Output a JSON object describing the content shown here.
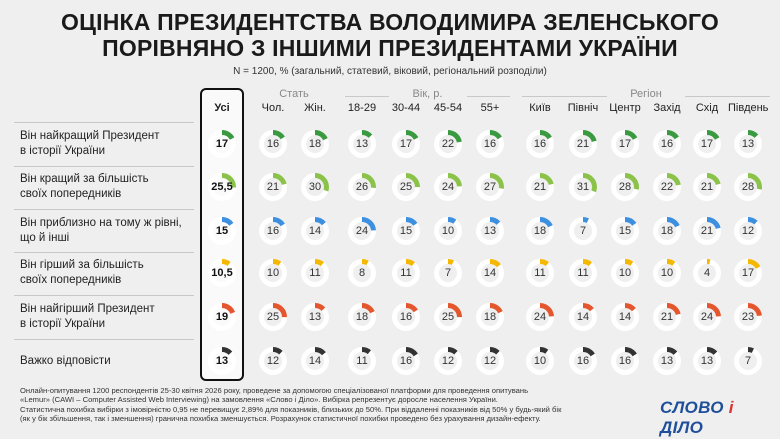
{
  "title_lines": [
    "ОЦІНКА ПРЕЗИДЕНТСТВА ВОЛОДИМИРА ЗЕЛЕНСЬКОГО",
    "ПОРІВНЯНО З ІНШИМИ ПРЕЗИДЕНТАМИ УКРАЇНИ"
  ],
  "subtitle": "N = 1200, % (загальний, статевий, віковий, регіональний розподіли)",
  "groups": [
    "Стать",
    "Вік, р.",
    "Регіон"
  ],
  "columns": [
    "Усі",
    "Чол.",
    "Жін.",
    "18-29",
    "30-44",
    "45-54",
    "55+",
    "Київ",
    "Північ",
    "Центр",
    "Захід",
    "Схід",
    "Південь"
  ],
  "footnote": [
    "Онлайн-опитування 1200 респондентів 25-30 квітня 2026 року, проведене за допомогою спеціалізованої платформи для проведення опитувань",
    "«Lemur» (CAWI – Computer Assisted Web Interviewing) на замовлення «Слово і Діло». Вибірка репрезентує доросле населення України.",
    "Статистична похибка вибірки з імовірністю 0,95 не перевищує 2,89% для показників, близьких до 50%. При віддаленні показників від 50% у будь-який бік",
    "(як у бік збільшення, так і зменшення) гранична похибка зменшується. Розрахунок статистичної похибки проведено без урахування дизайн-ефекту."
  ],
  "logo": {
    "word1": "СЛОВО",
    "amp": "і",
    "word2": "ДІЛО"
  },
  "chart_data": {
    "type": "table",
    "title": "ОЦІНКА ПРЕЗИДЕНТСТВА ВОЛОДИМИРА ЗЕЛЕНСЬКОГО ПОРІВНЯНО З ІНШИМИ ПРЕЗИДЕНТАМИ УКРАЇНИ",
    "unit": "%",
    "max": 100,
    "columns": [
      "Усі",
      "Чол.",
      "Жін.",
      "18-29",
      "30-44",
      "45-54",
      "55+",
      "Київ",
      "Північ",
      "Центр",
      "Захід",
      "Схід",
      "Південь"
    ],
    "rows": [
      {
        "label_lines": [
          "Він найкращий Президент",
          "в історії України"
        ],
        "color": "#3a9a3f",
        "values": [
          "17",
          "16",
          "18",
          "13",
          "17",
          "22",
          "16",
          "16",
          "21",
          "17",
          "16",
          "17",
          "13"
        ]
      },
      {
        "label_lines": [
          "Він кращий за більшість",
          "своїх попередників"
        ],
        "color": "#8bc34a",
        "values": [
          "25,5",
          "21",
          "30",
          "26",
          "25",
          "24",
          "27",
          "21",
          "31",
          "28",
          "22",
          "21",
          "28"
        ]
      },
      {
        "label_lines": [
          "Він приблизно на тому ж рівні,",
          "що й інші"
        ],
        "color": "#3d8fe0",
        "values": [
          "15",
          "16",
          "14",
          "24",
          "15",
          "10",
          "13",
          "18",
          "7",
          "15",
          "18",
          "21",
          "12"
        ]
      },
      {
        "label_lines": [
          "Він гірший за більшість",
          "своїх попередників"
        ],
        "color": "#f5b800",
        "values": [
          "10,5",
          "10",
          "11",
          "8",
          "11",
          "7",
          "14",
          "11",
          "11",
          "10",
          "10",
          "4",
          "17"
        ]
      },
      {
        "label_lines": [
          "Він найгірший Президент",
          "в історії України"
        ],
        "color": "#e4572e",
        "values": [
          "19",
          "25",
          "13",
          "18",
          "16",
          "25",
          "18",
          "24",
          "14",
          "14",
          "21",
          "24",
          "23"
        ]
      },
      {
        "label_lines": [
          "Важко відповісти"
        ],
        "color": "#333333",
        "values": [
          "13",
          "12",
          "14",
          "11",
          "16",
          "12",
          "12",
          "10",
          "16",
          "16",
          "13",
          "13",
          "7"
        ]
      }
    ]
  }
}
